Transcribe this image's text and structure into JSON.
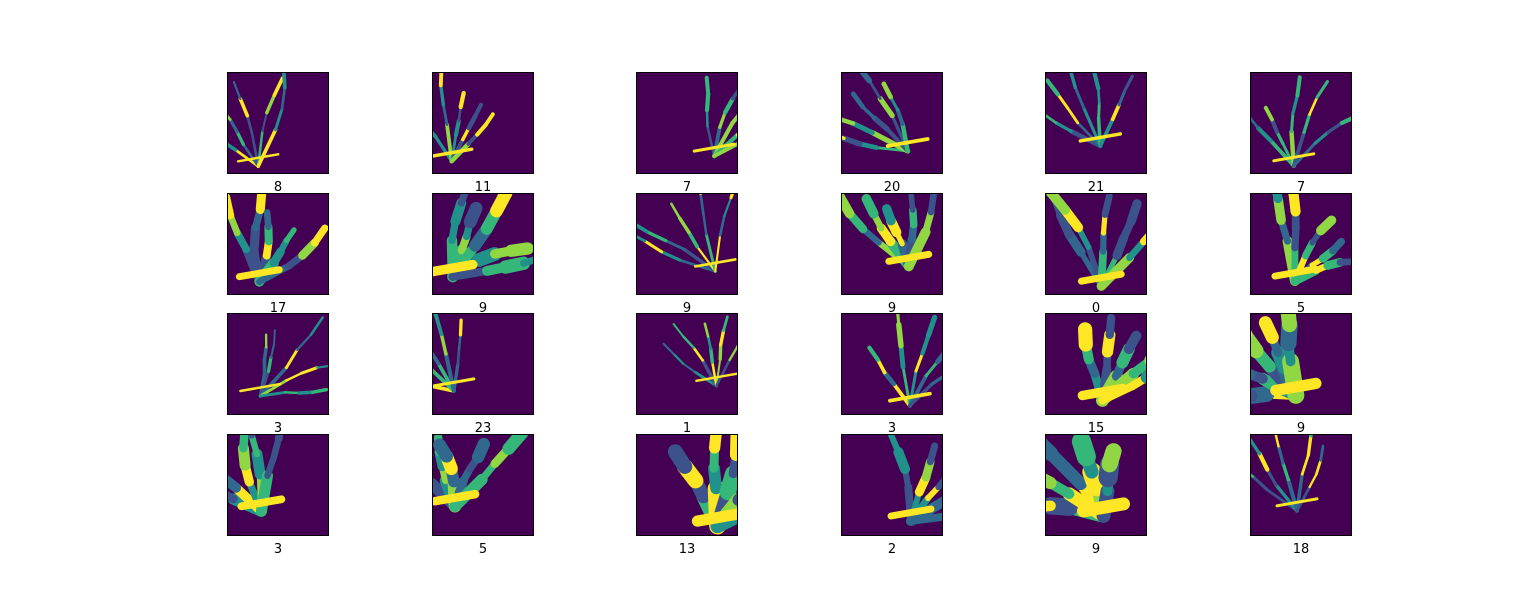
{
  "colors": {
    "background": "#440154",
    "palette": [
      "#3b528b",
      "#31688e",
      "#21918c",
      "#35b779",
      "#90d743",
      "#fde725"
    ]
  },
  "panels": [
    {
      "label": "8",
      "fill": 0.05
    },
    {
      "label": "11",
      "fill": 0.1
    },
    {
      "label": "7",
      "fill": 0.08
    },
    {
      "label": "20",
      "fill": 0.12
    },
    {
      "label": "21",
      "fill": 0.1
    },
    {
      "label": "7",
      "fill": 0.08
    },
    {
      "label": "17",
      "fill": 0.3
    },
    {
      "label": "9",
      "fill": 0.45
    },
    {
      "label": "9",
      "fill": 0.06
    },
    {
      "label": "9",
      "fill": 0.3
    },
    {
      "label": "0",
      "fill": 0.3
    },
    {
      "label": "5",
      "fill": 0.3
    },
    {
      "label": "3",
      "fill": 0.05
    },
    {
      "label": "23",
      "fill": 0.08
    },
    {
      "label": "1",
      "fill": 0.05
    },
    {
      "label": "3",
      "fill": 0.12
    },
    {
      "label": "15",
      "fill": 0.45
    },
    {
      "label": "9",
      "fill": 0.55
    },
    {
      "label": "3",
      "fill": 0.35
    },
    {
      "label": "5",
      "fill": 0.4
    },
    {
      "label": "13",
      "fill": 0.55
    },
    {
      "label": "2",
      "fill": 0.3
    },
    {
      "label": "9",
      "fill": 0.65
    },
    {
      "label": "18",
      "fill": 0.08
    }
  ]
}
